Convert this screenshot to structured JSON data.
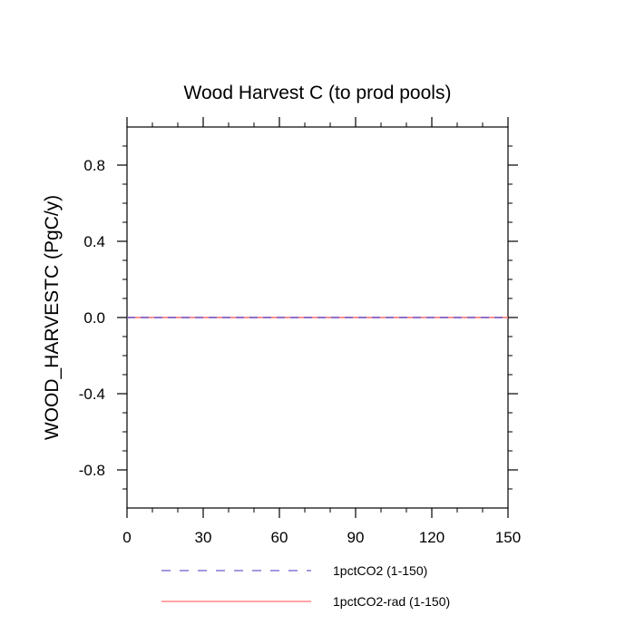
{
  "chart_data": {
    "type": "line",
    "title": "Wood Harvest C (to prod pools)",
    "xlabel": "",
    "ylabel": "WOOD_HARVESTC  (PgC/y)",
    "xlim": [
      0,
      150
    ],
    "ylim": [
      -1.0,
      1.0
    ],
    "x_ticks": [
      0,
      30,
      60,
      90,
      120,
      150
    ],
    "x_tick_labels": [
      "0",
      "30",
      "60",
      "90",
      "120",
      "150"
    ],
    "y_ticks": [
      -0.8,
      -0.4,
      0.0,
      0.4,
      0.8
    ],
    "y_tick_labels": [
      "-0.8",
      "-0.4",
      "0.0",
      "0.4",
      "0.8"
    ],
    "grid": false,
    "legend_position": "bottom",
    "series": [
      {
        "name": "1pctCO2 (1-150)",
        "color": "#6a5acd",
        "dash": "dashed",
        "x": [
          0,
          150
        ],
        "values": [
          0,
          0
        ]
      },
      {
        "name": "1pctCO2-rad (1-150)",
        "color": "#ff6f6f",
        "dash": "solid",
        "x": [
          0,
          150
        ],
        "values": [
          0,
          0
        ]
      }
    ]
  }
}
